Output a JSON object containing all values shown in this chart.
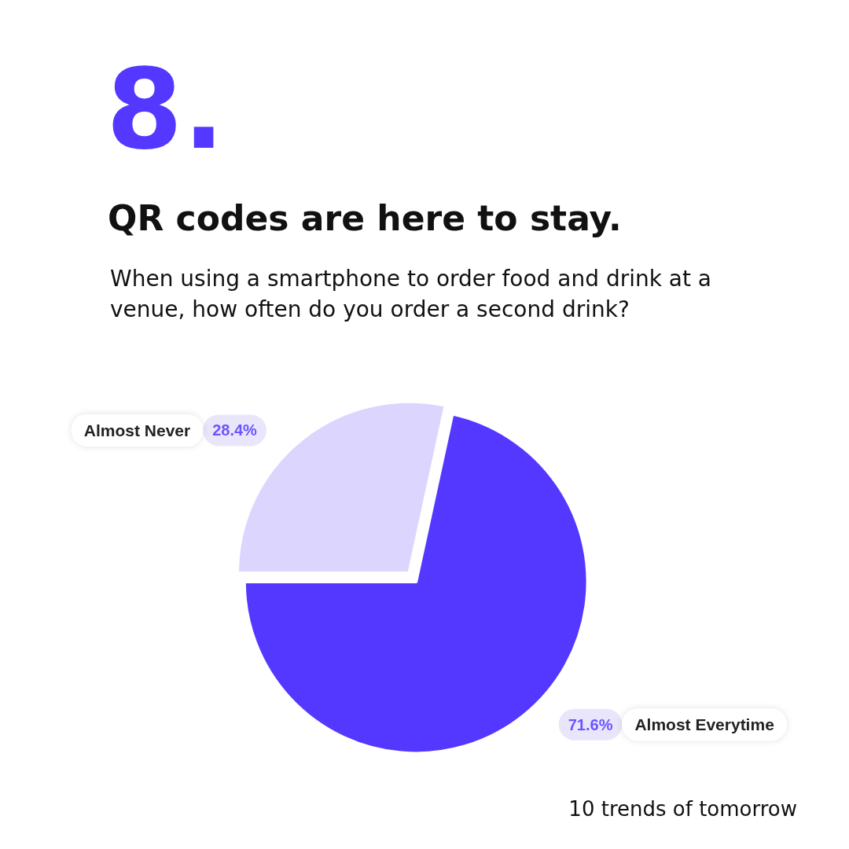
{
  "chart_data": {
    "type": "pie",
    "title": "QR codes are here to stay.",
    "subtitle": "When using a smartphone to order food and drink at a venue, how often do you order a second drink?",
    "annotations": [
      "8.",
      "10 trends of tomorrow"
    ],
    "categories": [
      "Almost Never",
      "Almost Everytime"
    ],
    "values": [
      28.4,
      71.6
    ],
    "colors": [
      "#dcd6fe",
      "#5438ff"
    ],
    "value_labels": [
      "28.4%",
      "71.6%"
    ],
    "legend": false
  }
}
